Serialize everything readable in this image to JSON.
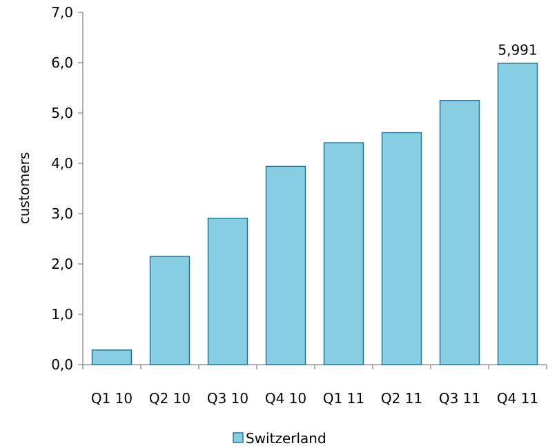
{
  "chart_data": {
    "type": "bar",
    "categories": [
      "Q1 10",
      "Q2 10",
      "Q3 10",
      "Q4 10",
      "Q1 11",
      "Q2 11",
      "Q3 11",
      "Q4 11"
    ],
    "series": [
      {
        "name": "Switzerland",
        "values": [
          0.29,
          2.15,
          2.91,
          3.94,
          4.41,
          4.61,
          5.25,
          5.991
        ],
        "color": "#87CEE3",
        "stroke": "#1E6E9C"
      }
    ],
    "data_labels": [
      {
        "index": 7,
        "text": "5,991"
      }
    ],
    "ylabel": "customers",
    "xlabel": "",
    "ylim": [
      0,
      7
    ],
    "yticks": [
      0,
      1,
      2,
      3,
      4,
      5,
      6,
      7
    ],
    "ytick_labels": [
      "0,0",
      "1,0",
      "2,0",
      "3,0",
      "4,0",
      "5,0",
      "6,0",
      "7,0"
    ],
    "grid": false,
    "legend_position": "bottom-center"
  }
}
